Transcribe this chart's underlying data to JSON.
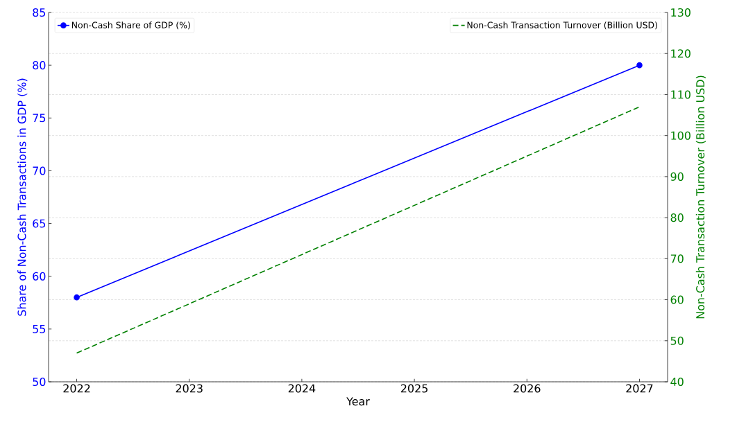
{
  "chart_data": {
    "type": "line",
    "xlabel": "Year",
    "ylabel": "Share of Non-Cash Transactions in GDP (%)",
    "y2label": "Non-Cash Transaction Turnover (Billion USD)",
    "x": [
      2022,
      2027
    ],
    "xlim": [
      2021.75,
      2027.25
    ],
    "xticks": [
      2022,
      2023,
      2024,
      2025,
      2026,
      2027
    ],
    "ylim": [
      50,
      85
    ],
    "yticks": [
      50,
      55,
      60,
      65,
      70,
      75,
      80,
      85
    ],
    "y2lim": [
      40,
      130
    ],
    "y2ticks": [
      40,
      50,
      60,
      70,
      80,
      90,
      100,
      110,
      120,
      130
    ],
    "grid": "y",
    "legend": "top",
    "series": [
      {
        "name": "Non-Cash Share of GDP (%)",
        "color": "#0000ff",
        "values": [
          58,
          80
        ],
        "marker": "circle",
        "line_style": "solid"
      },
      {
        "name": "Non-Cash Transaction Turnover (Billion USD)",
        "color": "#008000",
        "values": [
          47,
          107
        ],
        "axis": "y2",
        "marker": "none",
        "line_style": "dashed"
      }
    ]
  }
}
